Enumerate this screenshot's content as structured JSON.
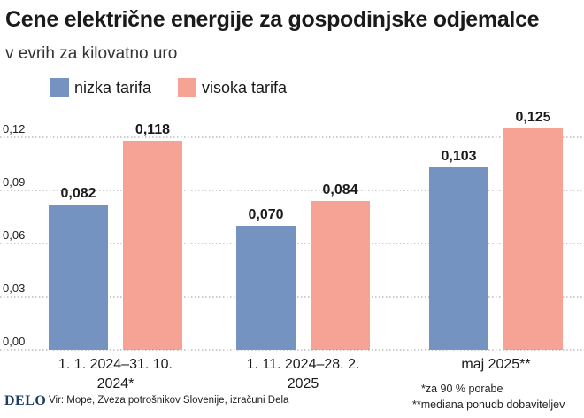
{
  "title": "Cene električne energije za gospodinjske odjemalce",
  "subtitle": "v evrih za kilovatno uro",
  "footer": {
    "brand": "DELO",
    "source": "Vir: Mope, Zveza potrošnikov Slovenije, izračuni Dela",
    "note_1": "*za 90 % porabe",
    "note_2": "**mediana ponudb dobaviteljev"
  },
  "colors": {
    "nizka": "#7593c1",
    "visoka": "#f6a396",
    "grid": "#9a9a9a",
    "background": "#ffffff"
  },
  "chart_data": {
    "type": "bar",
    "title": "Cene električne energije za gospodinjske odjemalce",
    "subtitle": "v evrih za kilovatno uro",
    "categories": [
      [
        "1. 1. 2024–31. 10.",
        "2024*"
      ],
      [
        "1. 11. 2024–28. 2.",
        "2025"
      ],
      [
        "maj 2025**"
      ]
    ],
    "series": [
      {
        "name": "nizka tarifa",
        "values": [
          0.082,
          0.07,
          0.103
        ],
        "labels": [
          "0,082",
          "0,070",
          "0,103"
        ]
      },
      {
        "name": "visoka tarifa",
        "values": [
          0.118,
          0.084,
          0.125
        ],
        "labels": [
          "0,118",
          "0,084",
          "0,125"
        ]
      }
    ],
    "yticks": [
      0.0,
      0.03,
      0.06,
      0.09,
      0.12
    ],
    "ytick_labels": [
      "0,00",
      "0,03",
      "0,06",
      "0,09",
      "0,12"
    ],
    "ylim": [
      0,
      0.135
    ],
    "grid": "horizontal dotted",
    "legend_position": "top-left"
  }
}
